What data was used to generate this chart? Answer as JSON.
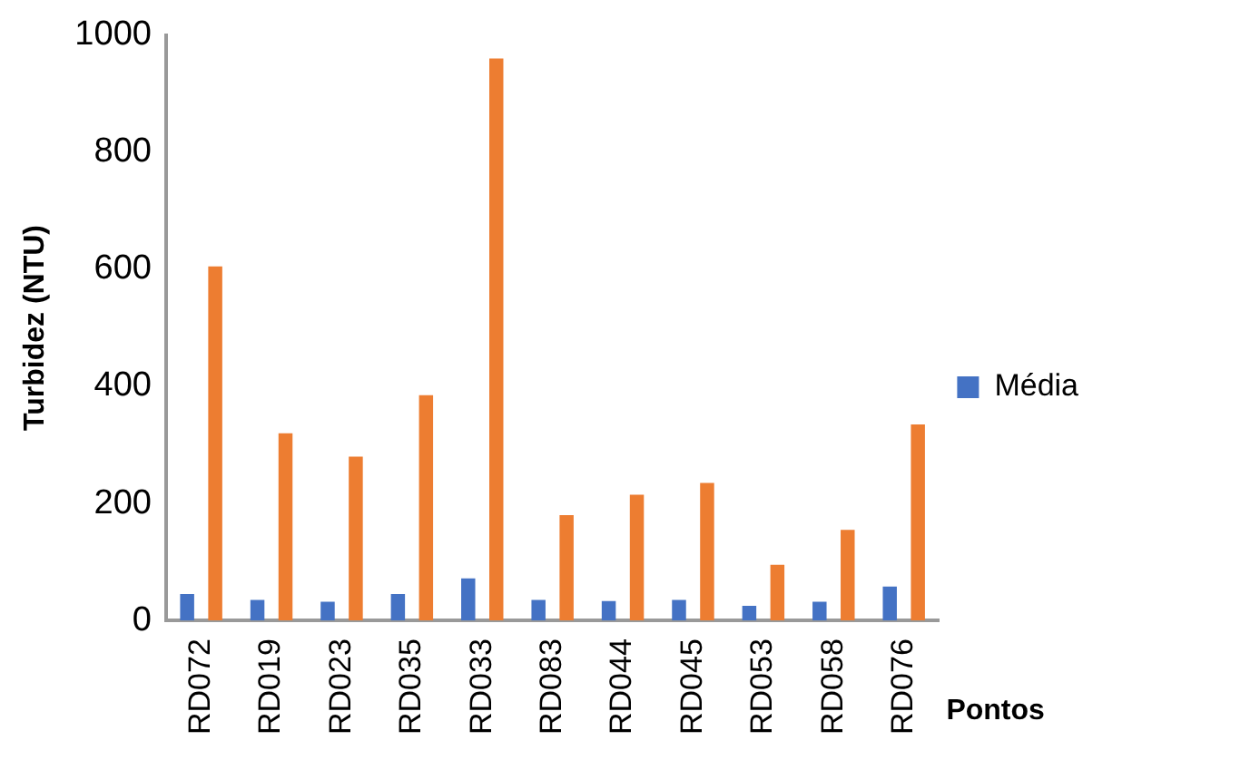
{
  "chart_data": {
    "type": "bar",
    "ylabel": "Turbidez (NTU)",
    "xlabel": "Pontos",
    "categories": [
      "RD072",
      "RD019",
      "RD023",
      "RD035",
      "RD033",
      "RD083",
      "RD044",
      "RD045",
      "RD053",
      "RD058",
      "RD076"
    ],
    "series": [
      {
        "name": "Média",
        "color": "#4472c4",
        "values": [
          45,
          35,
          32,
          45,
          72,
          35,
          33,
          35,
          25,
          32,
          58
        ]
      },
      {
        "color": "#ed7d31",
        "values": [
          605,
          320,
          280,
          385,
          960,
          180,
          215,
          235,
          95,
          155,
          335
        ]
      }
    ],
    "ylim": [
      0,
      1000
    ],
    "yticks": [
      0,
      200,
      400,
      600,
      800,
      1000
    ],
    "grid": false,
    "legend": "right"
  }
}
